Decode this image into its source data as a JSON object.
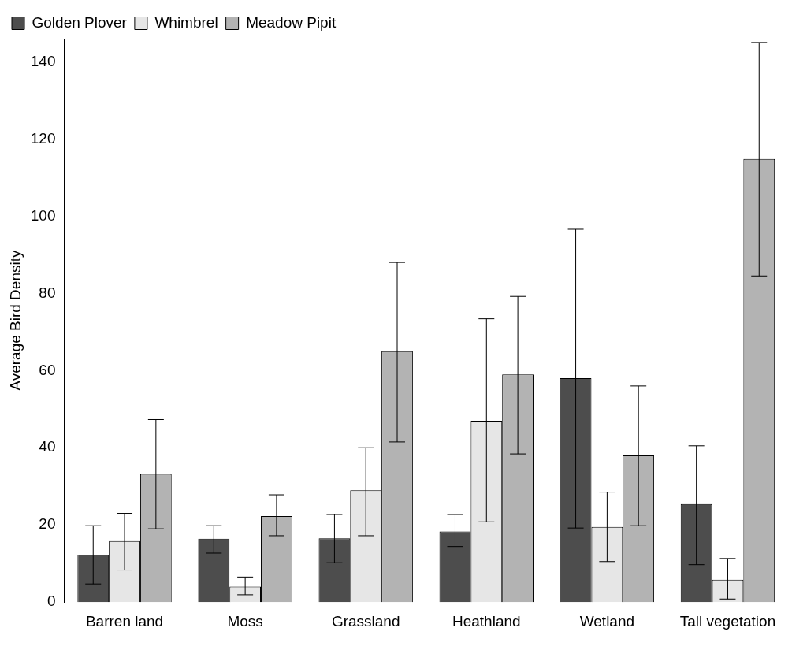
{
  "chart_data": {
    "type": "bar",
    "ylabel": "Average Bird Density",
    "categories": [
      "Barren land",
      "Moss",
      "Grassland",
      "Heathland",
      "Wetland",
      "Tall vegetation"
    ],
    "series": [
      {
        "name": "Golden Plover",
        "color": "#4d4d4d",
        "values": [
          12.3,
          16.4,
          16.5,
          18.3,
          58,
          25.4
        ],
        "errors": [
          [
            4.7,
            19.8
          ],
          [
            12.7,
            19.8
          ],
          [
            10.2,
            22.7
          ],
          [
            14.4,
            22.7
          ],
          [
            19.2,
            96.6
          ],
          [
            9.7,
            40.5
          ]
        ]
      },
      {
        "name": "Whimbrel",
        "color": "#e6e6e6",
        "values": [
          15.8,
          4,
          29,
          47,
          19.5,
          5.8
        ],
        "errors": [
          [
            8.3,
            23
          ],
          [
            1.9,
            6.5
          ],
          [
            17.2,
            40
          ],
          [
            20.8,
            73.4
          ],
          [
            10.5,
            28.5
          ],
          [
            0.8,
            11.3
          ]
        ]
      },
      {
        "name": "Meadow Pipit",
        "color": "#b3b3b3",
        "values": [
          33.2,
          22.3,
          65,
          59,
          38,
          114.8
        ],
        "errors": [
          [
            19,
            47.3
          ],
          [
            17.2,
            27.8
          ],
          [
            41.5,
            88
          ],
          [
            38.4,
            79.2
          ],
          [
            19.8,
            56
          ],
          [
            84.5,
            145
          ]
        ]
      }
    ],
    "ylim": [
      0,
      146
    ],
    "yticks": [
      0,
      20,
      40,
      60,
      80,
      100,
      120,
      140
    ],
    "grid": false,
    "legend": "top left"
  }
}
